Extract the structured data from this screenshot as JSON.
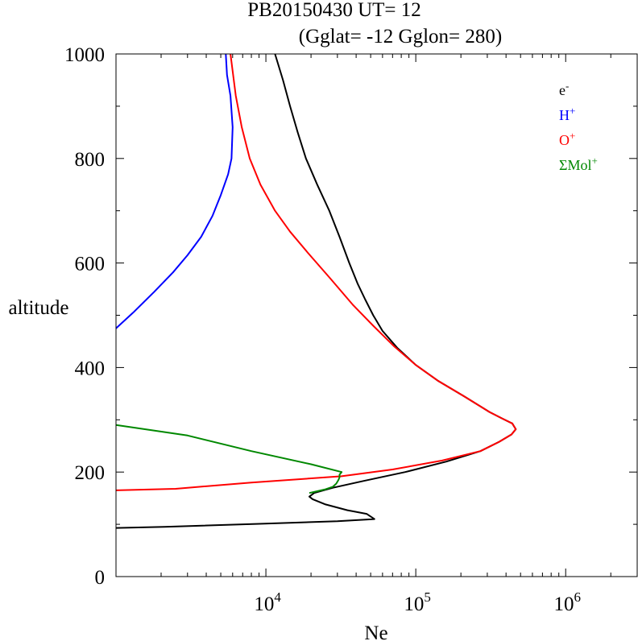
{
  "chart_data": {
    "type": "line",
    "title": "PB20150430   UT=  12",
    "subtitle": "(Gglat= -12   Gglon=  280)",
    "xlabel": "Ne",
    "ylabel": "altitude",
    "xscale": "log",
    "xlim": [
      1000,
      3000000
    ],
    "ylim": [
      0,
      1000
    ],
    "x_tick_labels": [
      {
        "base": "10",
        "exp": "4",
        "value": 10000
      },
      {
        "base": "10",
        "exp": "5",
        "value": 100000
      },
      {
        "base": "10",
        "exp": "6",
        "value": 1000000
      }
    ],
    "y_ticks": [
      0,
      200,
      400,
      600,
      800,
      1000
    ],
    "legend_placement": "top-right",
    "series": [
      {
        "name": "e",
        "name_sup": "-",
        "color": "#000000",
        "points": [
          [
            1000,
            93
          ],
          [
            2100,
            95
          ],
          [
            9000,
            101
          ],
          [
            30000,
            106
          ],
          [
            53000,
            110
          ],
          [
            47000,
            120
          ],
          [
            35000,
            127
          ],
          [
            25000,
            138
          ],
          [
            20500,
            148
          ],
          [
            19500,
            153
          ],
          [
            21000,
            160
          ],
          [
            28000,
            170
          ],
          [
            45000,
            183
          ],
          [
            85000,
            200
          ],
          [
            160000,
            220
          ],
          [
            270000,
            240
          ],
          [
            360000,
            258
          ],
          [
            435000,
            272
          ],
          [
            465000,
            282
          ],
          [
            440000,
            293
          ],
          [
            380000,
            302
          ],
          [
            310000,
            315
          ],
          [
            210000,
            345
          ],
          [
            140000,
            375
          ],
          [
            100000,
            405
          ],
          [
            75000,
            438
          ],
          [
            60000,
            470
          ],
          [
            52000,
            500
          ],
          [
            46000,
            530
          ],
          [
            41000,
            560
          ],
          [
            36000,
            600
          ],
          [
            31000,
            650
          ],
          [
            26500,
            700
          ],
          [
            22000,
            750
          ],
          [
            18500,
            800
          ],
          [
            16300,
            850
          ],
          [
            14500,
            900
          ],
          [
            13000,
            950
          ],
          [
            11500,
            1000
          ]
        ]
      },
      {
        "name": "H",
        "name_sup": "+",
        "color": "#0000ff",
        "points": [
          [
            1000,
            475
          ],
          [
            1300,
            505
          ],
          [
            1800,
            545
          ],
          [
            2400,
            582
          ],
          [
            3000,
            615
          ],
          [
            3700,
            650
          ],
          [
            4400,
            690
          ],
          [
            5000,
            730
          ],
          [
            5600,
            770
          ],
          [
            5900,
            800
          ],
          [
            6000,
            860
          ],
          [
            5800,
            920
          ],
          [
            5500,
            960
          ],
          [
            5400,
            1000
          ]
        ]
      },
      {
        "name": "O",
        "name_sup": "+",
        "color": "#ff0000",
        "points": [
          [
            1000,
            165
          ],
          [
            2500,
            168
          ],
          [
            8000,
            180
          ],
          [
            32000,
            192
          ],
          [
            70000,
            205
          ],
          [
            150000,
            222
          ],
          [
            270000,
            240
          ],
          [
            360000,
            258
          ],
          [
            435000,
            272
          ],
          [
            465000,
            282
          ],
          [
            440000,
            293
          ],
          [
            380000,
            302
          ],
          [
            310000,
            315
          ],
          [
            210000,
            345
          ],
          [
            140000,
            375
          ],
          [
            100000,
            405
          ],
          [
            72000,
            440
          ],
          [
            52000,
            480
          ],
          [
            38000,
            520
          ],
          [
            27000,
            570
          ],
          [
            19000,
            620
          ],
          [
            14500,
            660
          ],
          [
            11500,
            700
          ],
          [
            9200,
            750
          ],
          [
            7800,
            800
          ],
          [
            6900,
            860
          ],
          [
            6300,
            920
          ],
          [
            5800,
            1000
          ]
        ]
      },
      {
        "name": "ΣMol",
        "name_sup": "+",
        "color": "#008800",
        "points": [
          [
            1000,
            290
          ],
          [
            3000,
            270
          ],
          [
            8000,
            240
          ],
          [
            20000,
            215
          ],
          [
            32000,
            200
          ],
          [
            31000,
            195
          ],
          [
            31000,
            190
          ],
          [
            30500,
            185
          ],
          [
            29500,
            178
          ],
          [
            28000,
            172
          ],
          [
            25000,
            167
          ],
          [
            21000,
            162
          ],
          [
            19500,
            160
          ]
        ]
      }
    ]
  }
}
